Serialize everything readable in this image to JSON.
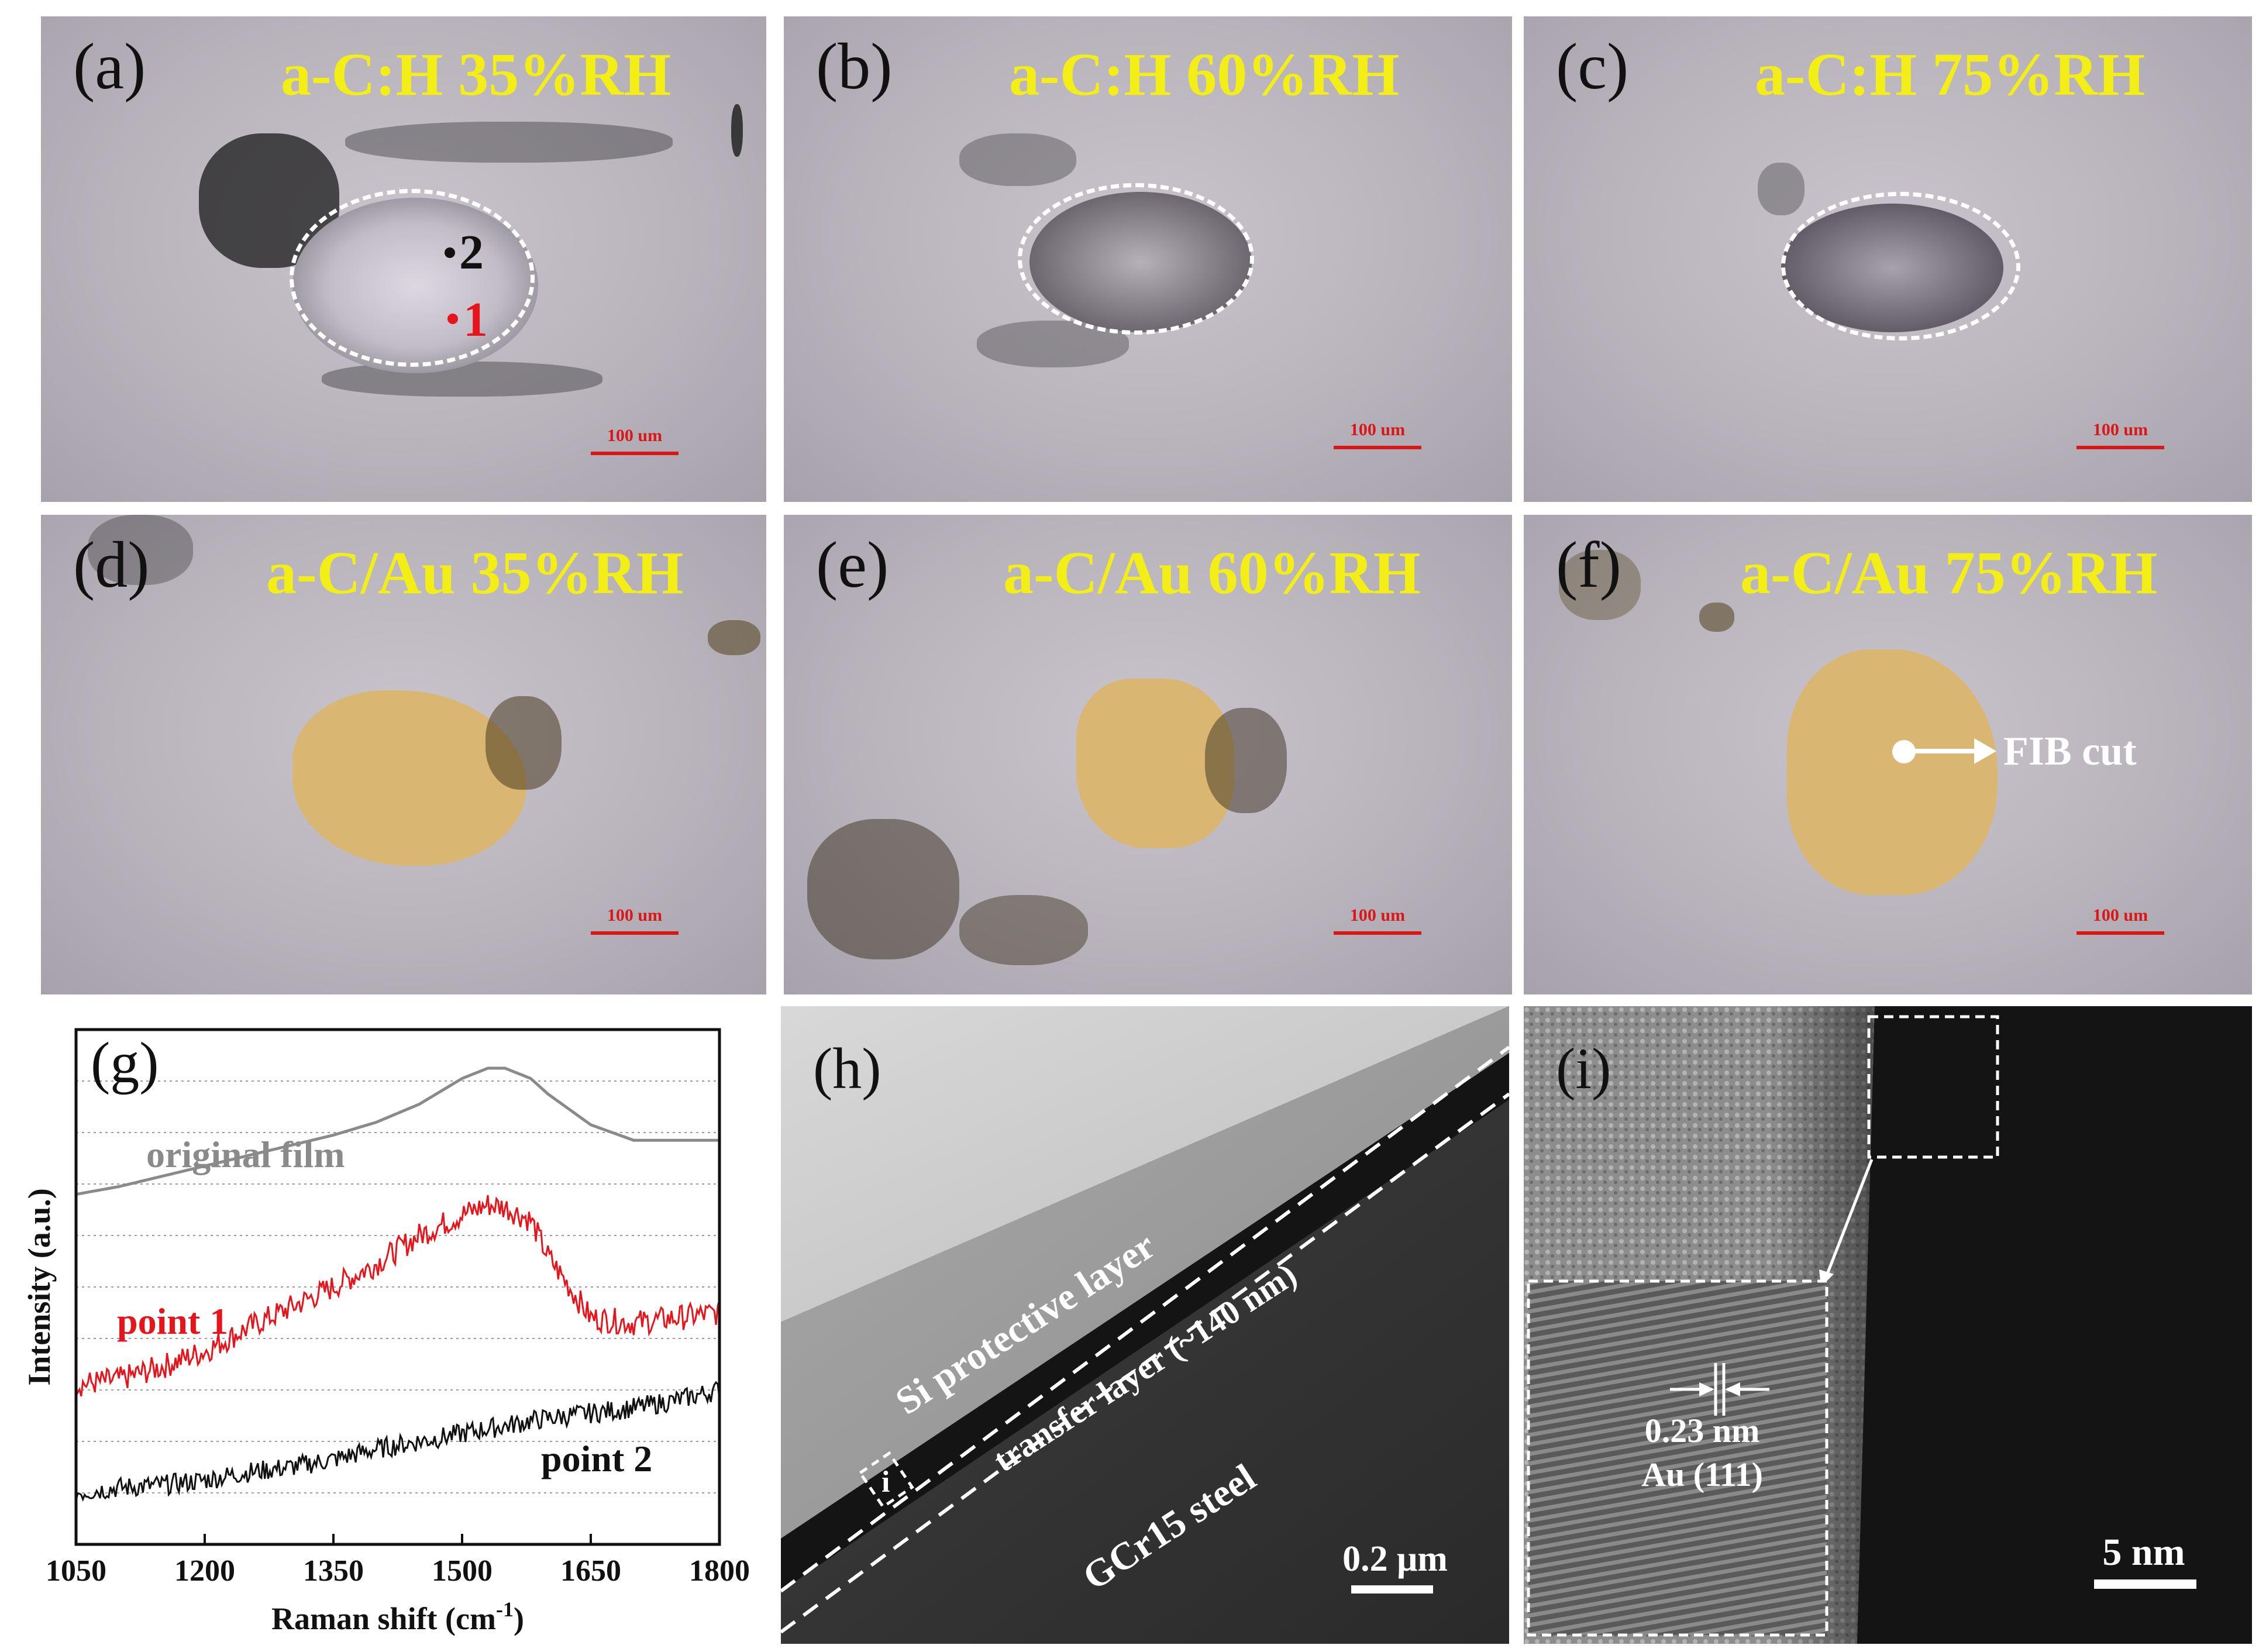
{
  "panels": {
    "a": {
      "label": "(a)",
      "title": "a-C:H 35%RH",
      "scale": "100 um",
      "point2": "2",
      "point1": "1"
    },
    "b": {
      "label": "(b)",
      "title": "a-C:H 60%RH",
      "scale": "100 um"
    },
    "c": {
      "label": "(c)",
      "title": "a-C:H 75%RH",
      "scale": "100 um"
    },
    "d": {
      "label": "(d)",
      "title": "a-C/Au 35%RH",
      "scale": "100 um"
    },
    "e": {
      "label": "(e)",
      "title": "a-C/Au 60%RH",
      "scale": "100 um"
    },
    "f": {
      "label": "(f)",
      "title": "a-C/Au 75%RH",
      "scale": "100 um",
      "annotation": "FIB cut"
    },
    "g": {
      "label": "(g)"
    },
    "h": {
      "label": "(h)",
      "layer_si": "Si protective layer",
      "layer_transfer": "transfer layer (~140 nm)",
      "layer_steel": "GCr15 steel",
      "box_label": "i",
      "scale": "0.2 μm"
    },
    "i": {
      "label": "(i)",
      "spacing": "0.23 nm",
      "plane": "Au (111)",
      "scale": "5 nm"
    }
  },
  "chart_data": {
    "type": "line",
    "title": "",
    "xlabel": "Raman shift (cm",
    "xlabel_sup": "-1",
    "xlabel_end": ")",
    "ylabel": "Intensity (a.u.)",
    "xlim": [
      1050,
      1800
    ],
    "ylim": [
      0,
      1
    ],
    "xticks": [
      1050,
      1200,
      1350,
      1500,
      1650,
      1800
    ],
    "x": [
      1050,
      1100,
      1150,
      1200,
      1250,
      1300,
      1350,
      1400,
      1450,
      1500,
      1530,
      1550,
      1580,
      1600,
      1650,
      1700,
      1750,
      1800
    ],
    "series": [
      {
        "name": "original film",
        "color": "#8a8a8a",
        "noise": 0.0,
        "values": [
          0.68,
          0.695,
          0.715,
          0.735,
          0.755,
          0.775,
          0.795,
          0.82,
          0.855,
          0.905,
          0.925,
          0.925,
          0.905,
          0.875,
          0.815,
          0.785,
          0.785,
          0.785
        ]
      },
      {
        "name": "point 1",
        "color": "#e8141b",
        "noise": 0.025,
        "values": [
          0.31,
          0.32,
          0.345,
          0.375,
          0.42,
          0.46,
          0.5,
          0.545,
          0.6,
          0.64,
          0.66,
          0.655,
          0.63,
          0.56,
          0.44,
          0.43,
          0.44,
          0.45
        ]
      },
      {
        "name": "point 2",
        "color": "#111111",
        "noise": 0.02,
        "values": [
          0.1,
          0.11,
          0.115,
          0.125,
          0.14,
          0.15,
          0.165,
          0.185,
          0.2,
          0.215,
          0.225,
          0.23,
          0.24,
          0.245,
          0.255,
          0.265,
          0.28,
          0.3
        ]
      }
    ]
  }
}
